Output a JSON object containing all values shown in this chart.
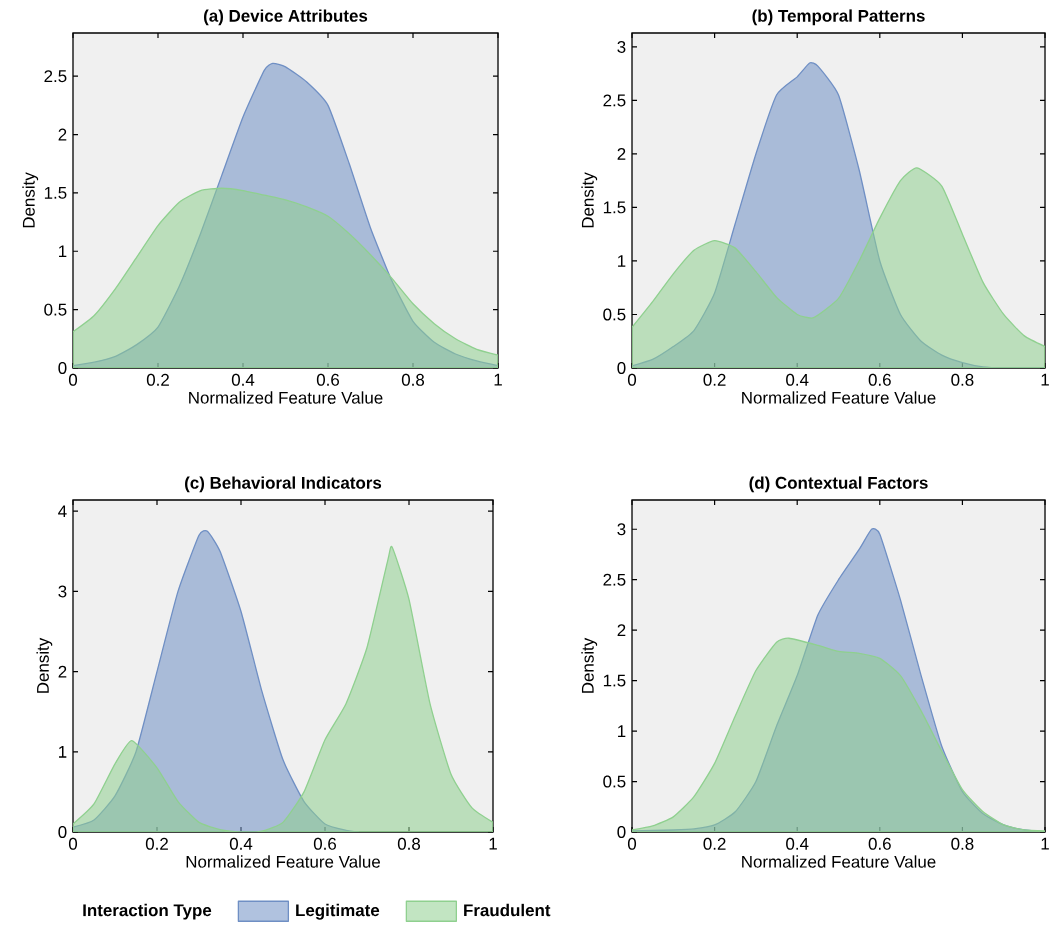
{
  "chart_data": [
    {
      "type": "area",
      "title": "(a) Device Attributes",
      "xlabel": "Normalized Feature Value",
      "ylabel": "Density",
      "xlim": [
        0,
        1
      ],
      "xticks": [
        0,
        0.2,
        0.4,
        0.6,
        0.8,
        1
      ],
      "ylim": [
        0,
        2.87
      ],
      "yticks": [
        0,
        0.5,
        1,
        1.5,
        2,
        2.5
      ],
      "grid": false,
      "series": [
        {
          "color": "#6f8fc4",
          "x": [
            0,
            0.05,
            0.1,
            0.15,
            0.2,
            0.25,
            0.3,
            0.35,
            0.4,
            0.45,
            0.47,
            0.5,
            0.55,
            0.6,
            0.65,
            0.7,
            0.75,
            0.8,
            0.85,
            0.9,
            0.95,
            1
          ],
          "values": [
            0.02,
            0.05,
            0.1,
            0.2,
            0.35,
            0.7,
            1.15,
            1.65,
            2.15,
            2.55,
            2.61,
            2.58,
            2.45,
            2.25,
            1.75,
            1.2,
            0.75,
            0.4,
            0.22,
            0.12,
            0.06,
            0.02
          ]
        },
        {
          "color": "#8fd08f",
          "x": [
            0,
            0.05,
            0.1,
            0.15,
            0.2,
            0.25,
            0.3,
            0.35,
            0.4,
            0.45,
            0.5,
            0.55,
            0.6,
            0.65,
            0.7,
            0.75,
            0.8,
            0.85,
            0.9,
            0.95,
            1
          ],
          "values": [
            0.31,
            0.45,
            0.68,
            0.95,
            1.22,
            1.42,
            1.52,
            1.54,
            1.52,
            1.48,
            1.44,
            1.38,
            1.3,
            1.15,
            0.97,
            0.77,
            0.55,
            0.38,
            0.25,
            0.16,
            0.11
          ]
        }
      ]
    },
    {
      "type": "area",
      "title": "(b) Temporal Patterns",
      "xlabel": "Normalized Feature Value",
      "ylabel": "Density",
      "xlim": [
        0,
        1
      ],
      "xticks": [
        0,
        0.2,
        0.4,
        0.6,
        0.8,
        1
      ],
      "ylim": [
        0,
        3.13
      ],
      "yticks": [
        0,
        0.5,
        1,
        1.5,
        2,
        2.5,
        3
      ],
      "grid": false,
      "series": [
        {
          "color": "#6f8fc4",
          "x": [
            0,
            0.05,
            0.1,
            0.15,
            0.2,
            0.25,
            0.3,
            0.35,
            0.4,
            0.43,
            0.45,
            0.5,
            0.55,
            0.6,
            0.65,
            0.7,
            0.75,
            0.8,
            0.85,
            0.9,
            1
          ],
          "values": [
            0.02,
            0.08,
            0.2,
            0.35,
            0.7,
            1.35,
            2.0,
            2.55,
            2.72,
            2.85,
            2.82,
            2.55,
            1.85,
            1.0,
            0.5,
            0.25,
            0.12,
            0.05,
            0.01,
            0,
            0
          ]
        },
        {
          "color": "#8fd08f",
          "x": [
            0,
            0.05,
            0.1,
            0.15,
            0.2,
            0.25,
            0.3,
            0.35,
            0.4,
            0.44,
            0.5,
            0.55,
            0.6,
            0.65,
            0.69,
            0.75,
            0.8,
            0.85,
            0.9,
            0.95,
            1
          ],
          "values": [
            0.38,
            0.62,
            0.88,
            1.1,
            1.19,
            1.12,
            0.9,
            0.66,
            0.5,
            0.47,
            0.65,
            1.0,
            1.4,
            1.75,
            1.87,
            1.7,
            1.25,
            0.8,
            0.5,
            0.3,
            0.2
          ]
        }
      ]
    },
    {
      "type": "area",
      "title": "(c) Behavioral Indicators",
      "xlabel": "Normalized Feature Value",
      "ylabel": "Density",
      "xlim": [
        0,
        1
      ],
      "xticks": [
        0,
        0.2,
        0.4,
        0.6,
        0.8,
        1
      ],
      "ylim": [
        0,
        4.14
      ],
      "yticks": [
        0,
        1,
        2,
        3,
        4
      ],
      "grid": false,
      "legend": "bottom",
      "legend_title": "Interaction Type",
      "series": [
        {
          "name": "Legitimate",
          "color": "#6f8fc4",
          "x": [
            0,
            0.05,
            0.1,
            0.15,
            0.2,
            0.25,
            0.3,
            0.32,
            0.35,
            0.4,
            0.45,
            0.5,
            0.55,
            0.6,
            0.65,
            0.68
          ],
          "values": [
            0.06,
            0.15,
            0.45,
            1.0,
            2.0,
            3.0,
            3.7,
            3.75,
            3.5,
            2.75,
            1.75,
            0.9,
            0.38,
            0.1,
            0.02,
            0
          ]
        },
        {
          "name": "Fraudulent",
          "color": "#8fd08f",
          "x": [
            0,
            0.05,
            0.1,
            0.14,
            0.2,
            0.25,
            0.3,
            0.35,
            0.4,
            0.45,
            0.5,
            0.55,
            0.6,
            0.65,
            0.7,
            0.75,
            0.76,
            0.8,
            0.85,
            0.9,
            0.95,
            1
          ],
          "values": [
            0.1,
            0.35,
            0.85,
            1.14,
            0.8,
            0.38,
            0.12,
            0.03,
            0,
            0.01,
            0.12,
            0.5,
            1.15,
            1.6,
            2.3,
            3.4,
            3.55,
            2.9,
            1.6,
            0.72,
            0.3,
            0.12
          ]
        }
      ]
    },
    {
      "type": "area",
      "title": "(d) Contextual Factors",
      "xlabel": "Normalized Feature Value",
      "ylabel": "Density",
      "xlim": [
        0,
        1
      ],
      "xticks": [
        0,
        0.2,
        0.4,
        0.6,
        0.8,
        1
      ],
      "ylim": [
        0,
        3.29
      ],
      "yticks": [
        0,
        0.5,
        1,
        1.5,
        2,
        2.5,
        3
      ],
      "grid": false,
      "series": [
        {
          "color": "#6f8fc4",
          "x": [
            0,
            0.1,
            0.15,
            0.2,
            0.25,
            0.3,
            0.35,
            0.4,
            0.45,
            0.5,
            0.55,
            0.58,
            0.6,
            0.65,
            0.7,
            0.75,
            0.8,
            0.85,
            0.9,
            0.95,
            1
          ],
          "values": [
            0.01,
            0.02,
            0.03,
            0.07,
            0.2,
            0.5,
            1.05,
            1.55,
            2.15,
            2.5,
            2.8,
            3.0,
            2.95,
            2.3,
            1.55,
            0.85,
            0.4,
            0.18,
            0.07,
            0.02,
            0
          ]
        },
        {
          "color": "#8fd08f",
          "x": [
            0,
            0.05,
            0.1,
            0.15,
            0.2,
            0.25,
            0.3,
            0.35,
            0.38,
            0.45,
            0.5,
            0.55,
            0.6,
            0.65,
            0.7,
            0.75,
            0.8,
            0.85,
            0.9,
            0.95,
            1
          ],
          "values": [
            0.02,
            0.06,
            0.15,
            0.35,
            0.68,
            1.15,
            1.6,
            1.88,
            1.92,
            1.85,
            1.79,
            1.77,
            1.72,
            1.55,
            1.2,
            0.8,
            0.42,
            0.2,
            0.07,
            0.02,
            0.01
          ]
        }
      ]
    }
  ]
}
